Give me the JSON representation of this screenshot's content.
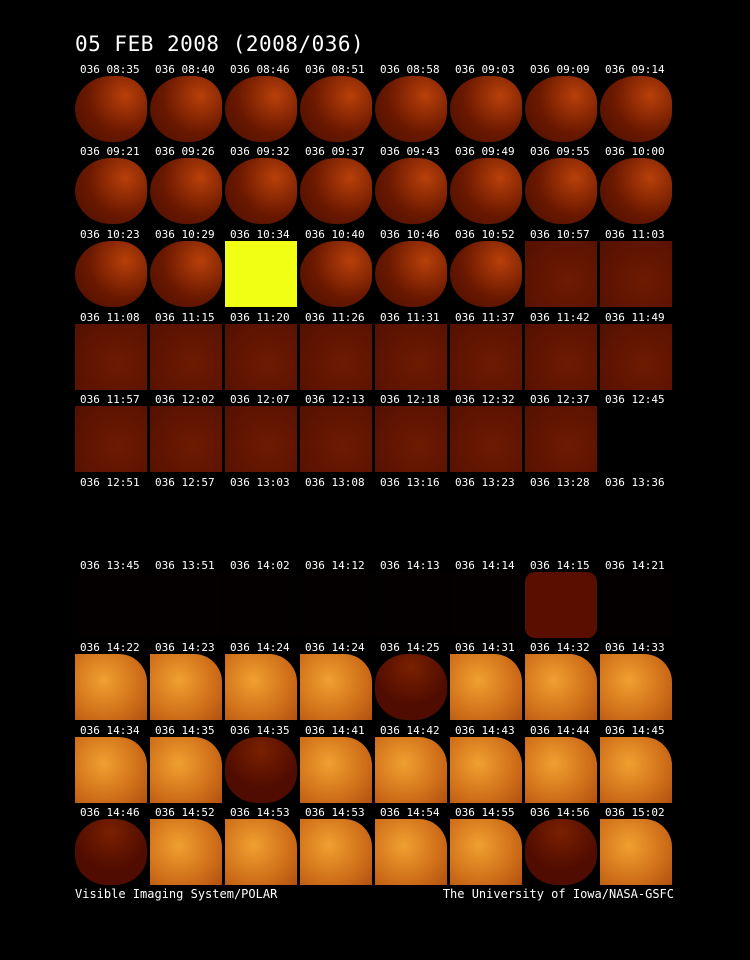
{
  "header": {
    "title": "05 FEB 2008  (2008/036)"
  },
  "grid": {
    "rows": [
      [
        "036 08:35",
        "036 08:40",
        "036 08:46",
        "036 08:51",
        "036 08:58",
        "036 09:03",
        "036 09:09",
        "036 09:14"
      ],
      [
        "036 09:21",
        "036 09:26",
        "036 09:32",
        "036 09:37",
        "036 09:43",
        "036 09:49",
        "036 09:55",
        "036 10:00"
      ],
      [
        "036 10:23",
        "036 10:29",
        "036 10:34",
        "036 10:40",
        "036 10:46",
        "036 10:52",
        "036 10:57",
        "036 11:03"
      ],
      [
        "036 11:08",
        "036 11:15",
        "036 11:20",
        "036 11:26",
        "036 11:31",
        "036 11:37",
        "036 11:42",
        "036 11:49"
      ],
      [
        "036 11:57",
        "036 12:02",
        "036 12:07",
        "036 12:13",
        "036 12:18",
        "036 12:32",
        "036 12:37",
        "036 12:45"
      ],
      [
        "036 12:51",
        "036 12:57",
        "036 13:03",
        "036 13:08",
        "036 13:16",
        "036 13:23",
        "036 13:28",
        "036 13:36"
      ],
      [
        "036 13:45",
        "036 13:51",
        "036 14:02",
        "036 14:12",
        "036 14:13",
        "036 14:14",
        "036 14:15",
        "036 14:21"
      ],
      [
        "036 14:22",
        "036 14:23",
        "036 14:24",
        "036 14:24",
        "036 14:25",
        "036 14:31",
        "036 14:32",
        "036 14:33"
      ],
      [
        "036 14:34",
        "036 14:35",
        "036 14:35",
        "036 14:41",
        "036 14:42",
        "036 14:43",
        "036 14:44",
        "036 14:45"
      ],
      [
        "036 14:46",
        "036 14:52",
        "036 14:53",
        "036 14:53",
        "036 14:54",
        "036 14:55",
        "036 14:56",
        "036 15:02"
      ]
    ]
  },
  "footer": {
    "left": "Visible Imaging System/POLAR",
    "right": "The University of Iowa/NASA-GSFC"
  }
}
